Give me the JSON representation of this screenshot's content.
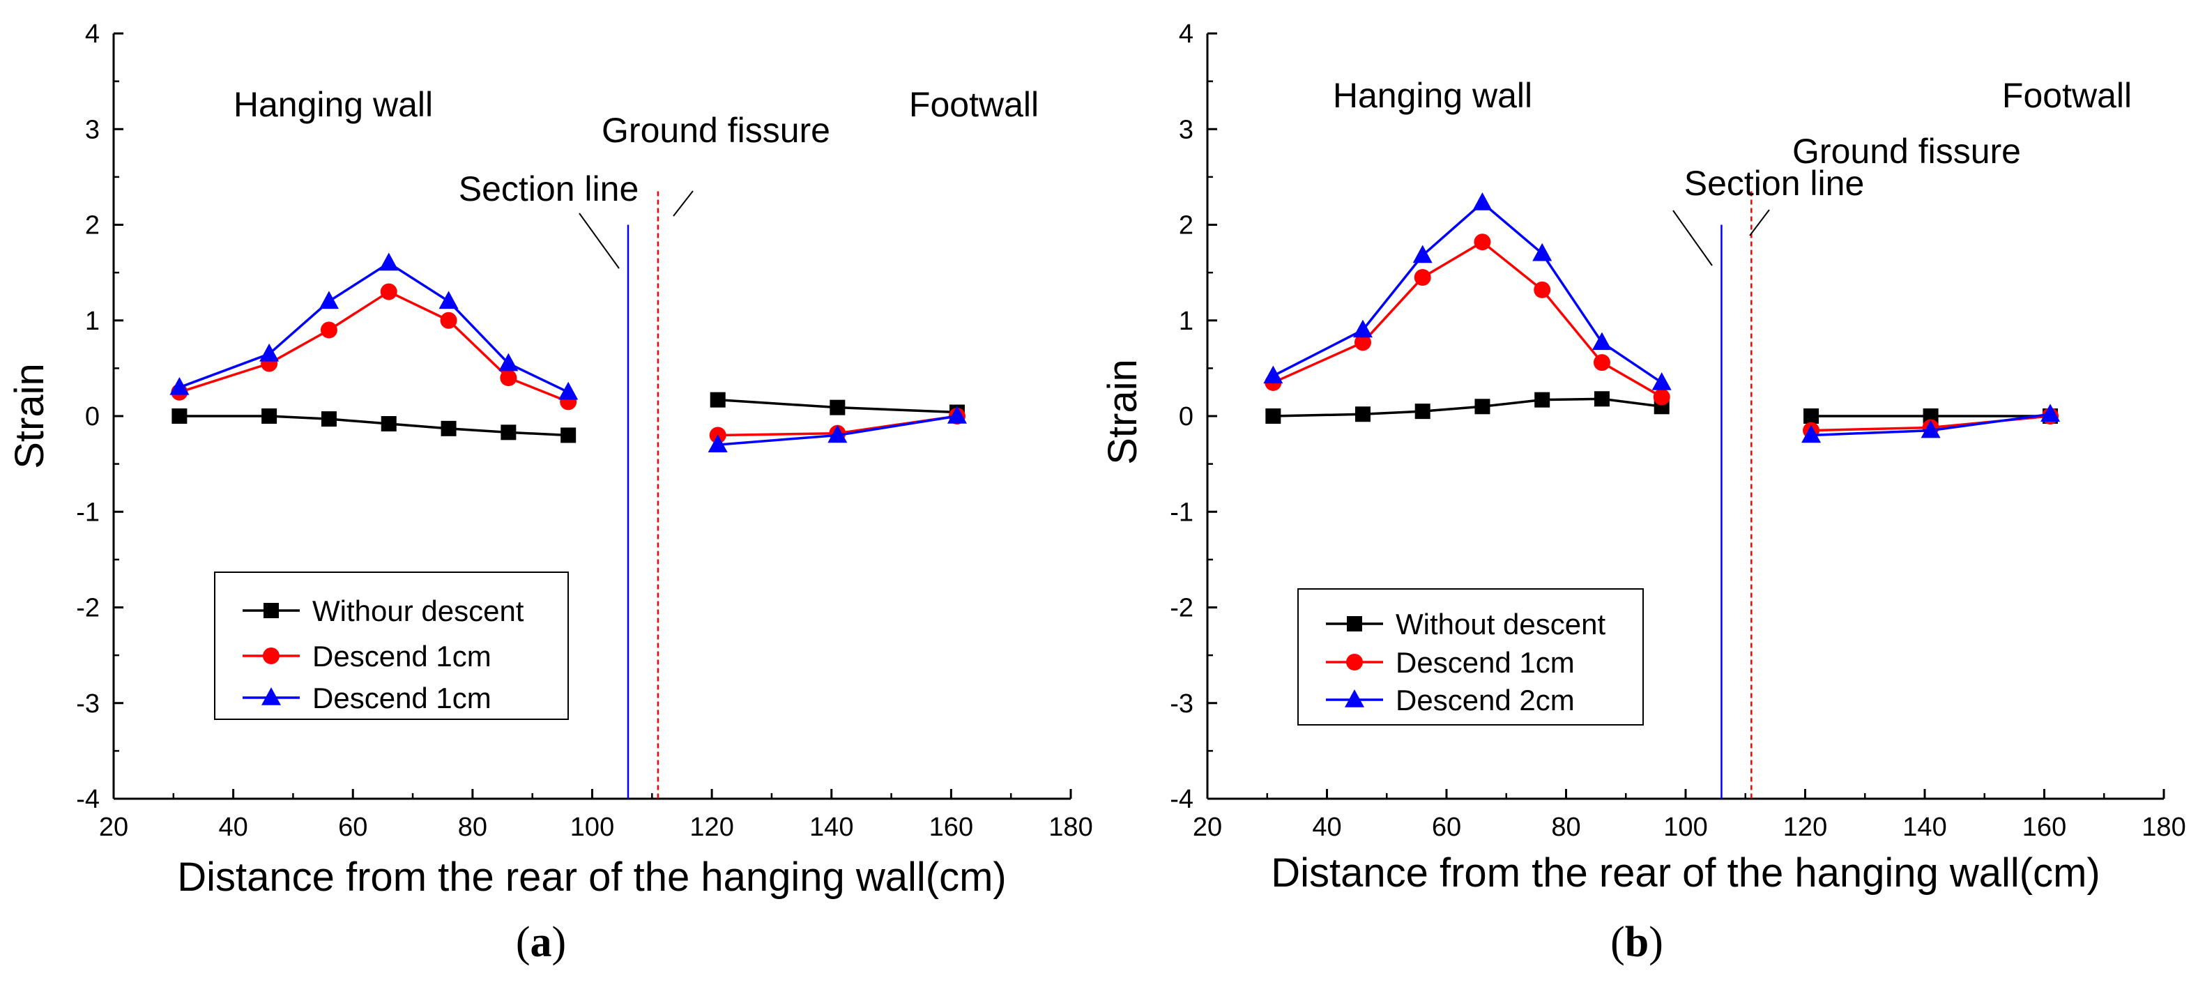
{
  "chart_data": [
    {
      "type": "line",
      "panel_label": "a",
      "xlabel": "Distance from the rear of the hanging wall(cm)",
      "ylabel": "Strain",
      "xlim": [
        20,
        180
      ],
      "ylim": [
        -4,
        4
      ],
      "x_ticks": [
        "20",
        "40",
        "60",
        "80",
        "100",
        "120",
        "140",
        "160",
        "180"
      ],
      "y_ticks": [
        "-4",
        "-3",
        "-2",
        "-1",
        "0",
        "1",
        "2",
        "3",
        "4"
      ],
      "grid": false,
      "legend_position": "lower-left",
      "annotations": {
        "hanging_wall": "Hanging wall",
        "footwall": "Footwall",
        "ground_fissure": "Ground fissure",
        "section_line": "Section line"
      },
      "section_line_x": 106,
      "ground_fissure_x": 111,
      "series": [
        {
          "name": "Withour descent",
          "color": "#000000",
          "marker": "square",
          "segments": [
            {
              "x": [
                31,
                46,
                56,
                66,
                76,
                86,
                96
              ],
              "y": [
                0.0,
                0.0,
                -0.03,
                -0.08,
                -0.13,
                -0.17,
                -0.2
              ]
            },
            {
              "x": [
                121,
                141,
                161
              ],
              "y": [
                0.17,
                0.09,
                0.04
              ]
            }
          ]
        },
        {
          "name": "Descend 1cm",
          "color": "#ff0000",
          "marker": "circle",
          "segments": [
            {
              "x": [
                31,
                46,
                56,
                66,
                76,
                86,
                96
              ],
              "y": [
                0.25,
                0.55,
                0.9,
                1.3,
                1.0,
                0.4,
                0.15
              ]
            },
            {
              "x": [
                121,
                141,
                161
              ],
              "y": [
                -0.2,
                -0.18,
                0.0
              ]
            }
          ]
        },
        {
          "name": "Descend 1cm",
          "color": "#0000ff",
          "marker": "triangle",
          "segments": [
            {
              "x": [
                31,
                46,
                56,
                66,
                76,
                86,
                96
              ],
              "y": [
                0.3,
                0.65,
                1.2,
                1.6,
                1.2,
                0.55,
                0.25
              ]
            },
            {
              "x": [
                121,
                141,
                161
              ],
              "y": [
                -0.3,
                -0.2,
                0.0
              ]
            }
          ]
        }
      ]
    },
    {
      "type": "line",
      "panel_label": "b",
      "xlabel": "Distance from the rear of the hanging wall(cm)",
      "ylabel": "Strain",
      "xlim": [
        20,
        180
      ],
      "ylim": [
        -4,
        4
      ],
      "x_ticks": [
        "20",
        "40",
        "60",
        "80",
        "100",
        "120",
        "140",
        "160",
        "180"
      ],
      "y_ticks": [
        "-4",
        "-3",
        "-2",
        "-1",
        "0",
        "1",
        "2",
        "3",
        "4"
      ],
      "grid": false,
      "legend_position": "lower-left",
      "annotations": {
        "hanging_wall": "Hanging wall",
        "footwall": "Footwall",
        "ground_fissure": "Ground fissure",
        "section_line": "Section line"
      },
      "section_line_x": 106,
      "ground_fissure_x": 111,
      "series": [
        {
          "name": "Without descent",
          "color": "#000000",
          "marker": "square",
          "segments": [
            {
              "x": [
                31,
                46,
                56,
                66,
                76,
                86,
                96
              ],
              "y": [
                0.0,
                0.02,
                0.05,
                0.1,
                0.17,
                0.18,
                0.1
              ]
            },
            {
              "x": [
                121,
                141,
                161
              ],
              "y": [
                0.0,
                0.0,
                0.0
              ]
            }
          ]
        },
        {
          "name": "Descend 1cm",
          "color": "#ff0000",
          "marker": "circle",
          "segments": [
            {
              "x": [
                31,
                46,
                56,
                66,
                76,
                86,
                96
              ],
              "y": [
                0.35,
                0.77,
                1.45,
                1.82,
                1.32,
                0.56,
                0.2
              ]
            },
            {
              "x": [
                121,
                141,
                161
              ],
              "y": [
                -0.15,
                -0.12,
                0.0
              ]
            }
          ]
        },
        {
          "name": "Descend 2cm",
          "color": "#0000ff",
          "marker": "triangle",
          "segments": [
            {
              "x": [
                31,
                46,
                56,
                66,
                76,
                86,
                96
              ],
              "y": [
                0.42,
                0.9,
                1.68,
                2.23,
                1.7,
                0.77,
                0.35
              ]
            },
            {
              "x": [
                121,
                141,
                161
              ],
              "y": [
                -0.2,
                -0.15,
                0.02
              ]
            }
          ]
        }
      ]
    }
  ]
}
